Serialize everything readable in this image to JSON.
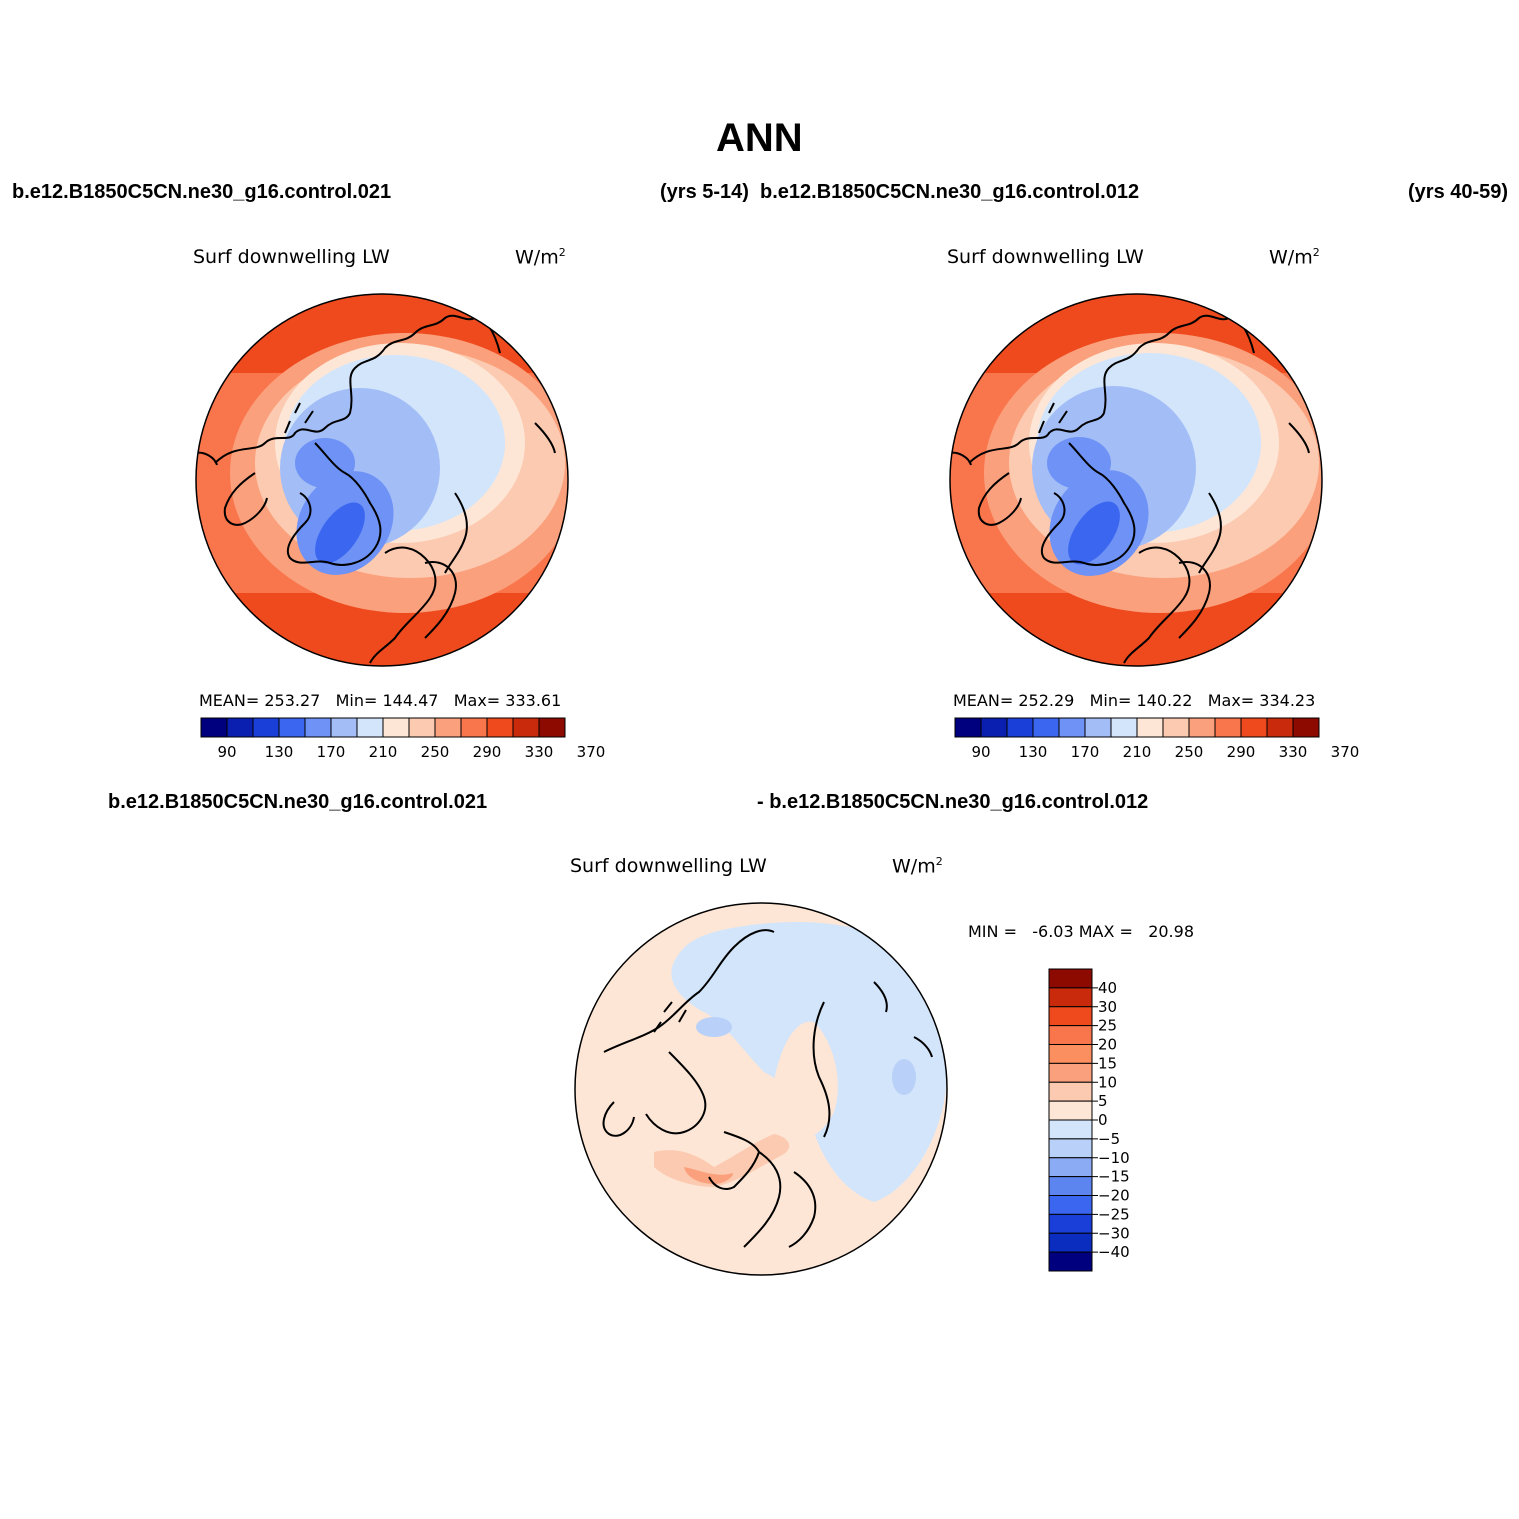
{
  "title": "ANN",
  "header": {
    "left_case": "b.e12.B1850C5CN.ne30_g16.control.021",
    "left_years": "(yrs 5-14)",
    "right_case": "b.e12.B1850C5CN.ne30_g16.control.012",
    "right_years": "(yrs 40-59)"
  },
  "panels": [
    {
      "variable": "Surf downwelling LW",
      "units": "W/m",
      "units_sup": "2",
      "stats": {
        "mean_label": "MEAN=",
        "mean": "253.27",
        "min_label": "Min=",
        "min": "144.47",
        "max_label": "Max=",
        "max": "333.61"
      }
    },
    {
      "variable": "Surf downwelling LW",
      "units": "W/m",
      "units_sup": "2",
      "stats": {
        "mean_label": "MEAN=",
        "mean": "252.29",
        "min_label": "Min=",
        "min": "140.22",
        "max_label": "Max=",
        "max": "334.23"
      }
    }
  ],
  "diff_panel": {
    "case_a": "b.e12.B1850C5CN.ne30_g16.control.021",
    "case_b": "- b.e12.B1850C5CN.ne30_g16.control.012",
    "variable": "Surf downwelling LW",
    "units": "W/m",
    "units_sup": "2",
    "minmax_text": "MIN =   -6.03 MAX =   20.98"
  },
  "colorbar_main": {
    "colors": [
      "#00007f",
      "#0a1fb0",
      "#1a3fd8",
      "#3b66f0",
      "#6e92f5",
      "#a3bdf7",
      "#d2e5fb",
      "#fde6d6",
      "#fccab0",
      "#fba07c",
      "#f9754c",
      "#ee4a1e",
      "#c92a0c",
      "#8c0a00"
    ],
    "tick_labels": [
      "90",
      "130",
      "170",
      "210",
      "250",
      "290",
      "330",
      "370"
    ]
  },
  "colorbar_diff": {
    "colors": [
      "#8c0a00",
      "#c92a0c",
      "#ee4a1e",
      "#f9754c",
      "#fb8f60",
      "#fba07c",
      "#fccab0",
      "#fde6d6",
      "#d2e5fb",
      "#b9d1f8",
      "#8cabf5",
      "#5d85ef",
      "#3b66f0",
      "#1a3fd8",
      "#0a2dc0",
      "#00007f"
    ],
    "tick_labels": [
      "40",
      "30",
      "25",
      "20",
      "15",
      "10",
      "5",
      "0",
      "−5",
      "−10",
      "−15",
      "−20",
      "−25",
      "−30",
      "−40"
    ]
  }
}
